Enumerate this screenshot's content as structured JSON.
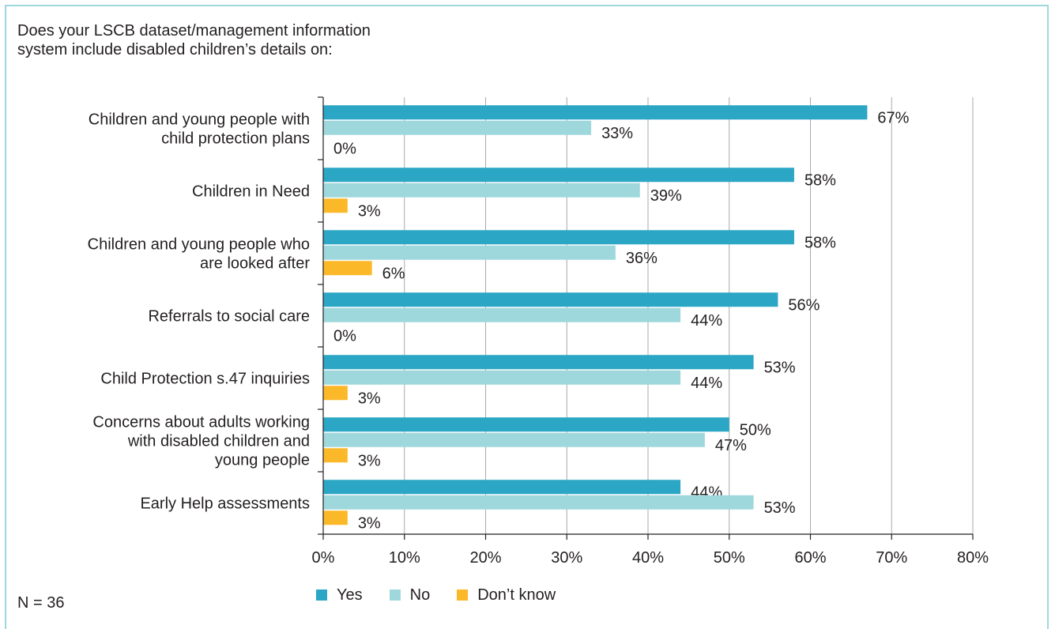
{
  "question": "Does your LSCB dataset/management information system include disabled children’s details on:",
  "note": "N = 36",
  "colors": {
    "yes": "#2ba6c4",
    "no": "#9fd8dc",
    "dont_know": "#fbb829",
    "grid": "#a7a9ac",
    "axis": "#231f20"
  },
  "chart_data": {
    "type": "bar",
    "orientation": "horizontal",
    "categories": [
      "Children and young people with child protection plans",
      "Children in Need",
      "Children and young people who are looked after",
      "Referrals to social care",
      "Child Protection s.47 inquiries",
      "Concerns about adults working with disabled children and young people",
      "Early Help assessments"
    ],
    "category_lines": [
      [
        "Children and young people with",
        "child protection plans"
      ],
      [
        "Children in Need"
      ],
      [
        "Children and young people who",
        "are looked after"
      ],
      [
        "Referrals to social care"
      ],
      [
        "Child Protection s.47 inquiries"
      ],
      [
        "Concerns about adults working",
        "with disabled children and",
        "young people"
      ],
      [
        "Early Help assessments"
      ]
    ],
    "series": [
      {
        "name": "Yes",
        "color": "#2ba6c4",
        "values": [
          67,
          58,
          58,
          56,
          53,
          50,
          44
        ],
        "labels": [
          "67%",
          "58%",
          "58%",
          "56%",
          "53%",
          "50%",
          "44%"
        ]
      },
      {
        "name": "No",
        "color": "#9fd8dc",
        "values": [
          33,
          39,
          36,
          44,
          44,
          47,
          53
        ],
        "labels": [
          "33%",
          "39%",
          "36%",
          "44%",
          "44%",
          "47%",
          "53%"
        ]
      },
      {
        "name": "Don’t know",
        "color": "#fbb829",
        "values": [
          0,
          3,
          6,
          0,
          3,
          3,
          3
        ],
        "labels": [
          "0%",
          "3%",
          "6%",
          "0%",
          "3%",
          "3%",
          "3%"
        ]
      }
    ],
    "xlim": [
      0,
      80
    ],
    "xticks": [
      "0%",
      "10%",
      "20%",
      "30%",
      "40%",
      "50%",
      "60%",
      "70%",
      "80%"
    ],
    "grid": true,
    "legend": "bottom"
  }
}
